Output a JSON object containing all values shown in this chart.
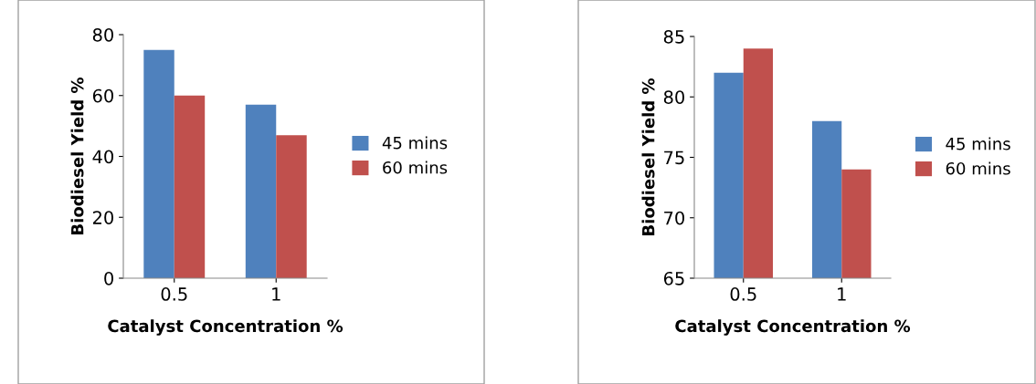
{
  "chart_data": [
    {
      "type": "bar",
      "xlabel": "Catalyst Concentration %",
      "ylabel": "Biodiesel Yield %",
      "categories": [
        "0.5",
        "1"
      ],
      "series": [
        {
          "name": "45 mins",
          "color": "#4f81bd",
          "values": [
            75,
            57
          ]
        },
        {
          "name": "60 mins",
          "color": "#c0504d",
          "values": [
            60,
            47
          ]
        }
      ],
      "ylim": [
        0,
        80
      ],
      "yticks": [
        0,
        20,
        40,
        60,
        80
      ],
      "grid": false,
      "legend": "right"
    },
    {
      "type": "bar",
      "xlabel": "Catalyst Concentration %",
      "ylabel": "Biodiesel Yield %",
      "categories": [
        "0.5",
        "1"
      ],
      "series": [
        {
          "name": "45 mins",
          "color": "#4f81bd",
          "values": [
            82,
            78
          ]
        },
        {
          "name": "60 mins",
          "color": "#c0504d",
          "values": [
            84,
            74
          ]
        }
      ],
      "ylim": [
        65,
        85
      ],
      "yticks": [
        65,
        70,
        75,
        80,
        85
      ],
      "grid": false,
      "legend": "right"
    }
  ]
}
